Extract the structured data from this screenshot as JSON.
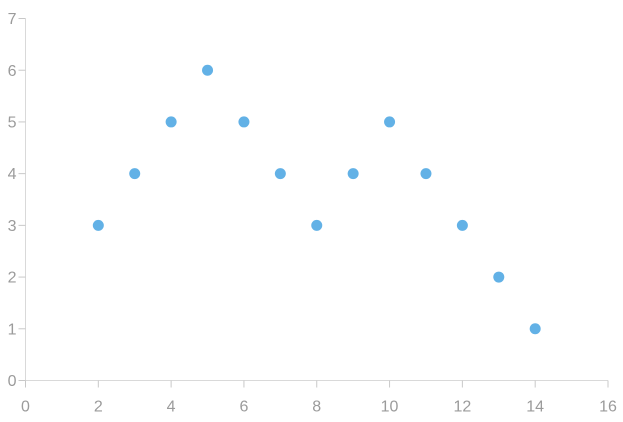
{
  "chart_data": {
    "type": "scatter",
    "title": "",
    "xlabel": "",
    "ylabel": "",
    "grid": false,
    "legend": false,
    "points": [
      {
        "x": 2,
        "y": 3
      },
      {
        "x": 3,
        "y": 4
      },
      {
        "x": 4,
        "y": 5
      },
      {
        "x": 5,
        "y": 6
      },
      {
        "x": 6,
        "y": 5
      },
      {
        "x": 7,
        "y": 4
      },
      {
        "x": 8,
        "y": 3
      },
      {
        "x": 9,
        "y": 4
      },
      {
        "x": 10,
        "y": 5
      },
      {
        "x": 11,
        "y": 4
      },
      {
        "x": 12,
        "y": 3
      },
      {
        "x": 13,
        "y": 2
      },
      {
        "x": 14,
        "y": 1
      }
    ],
    "x_axis": {
      "min": 0,
      "max": 16,
      "tick_step": 2,
      "tick_labels": [
        "0",
        "2",
        "4",
        "6",
        "8",
        "10",
        "12",
        "14",
        "16"
      ]
    },
    "y_axis": {
      "min": 0,
      "max": 7,
      "tick_step": 1,
      "tick_labels": [
        "0",
        "1",
        "2",
        "3",
        "4",
        "5",
        "6",
        "7"
      ]
    },
    "colors": {
      "point": "#62b1e6",
      "axis_line": "#d9d9d9",
      "tick_mark": "#c8c8c8",
      "tick_label": "#9b9b9b",
      "background": "#ffffff"
    }
  }
}
